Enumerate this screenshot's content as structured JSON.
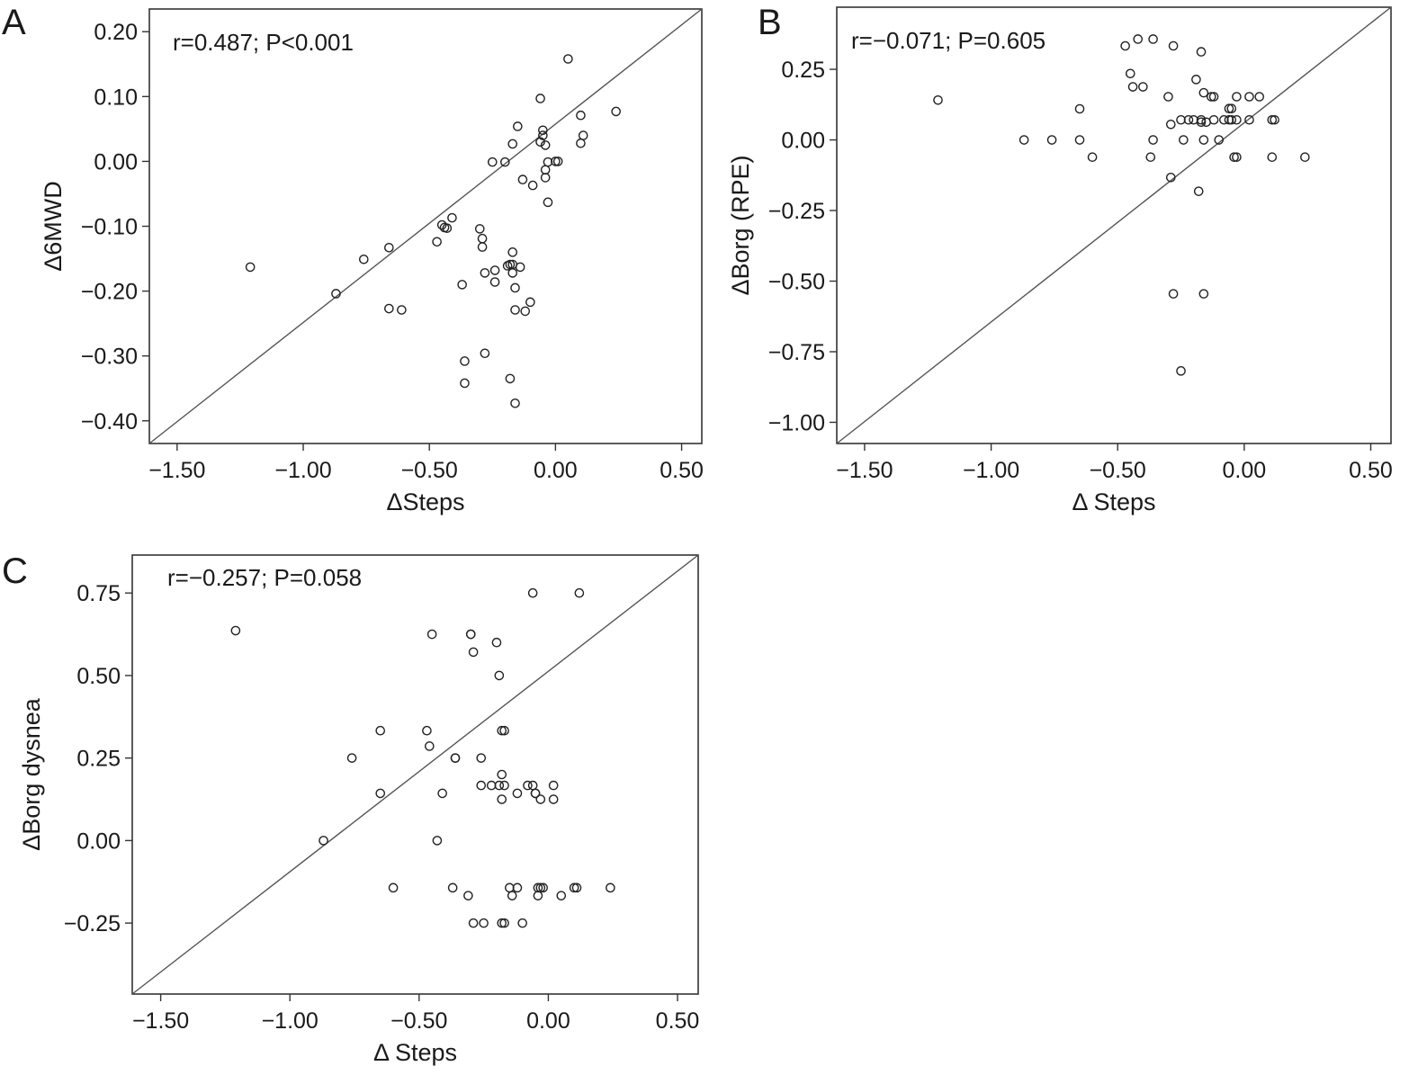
{
  "chart_data": [
    {
      "panel": "A",
      "type": "scatter",
      "annotation": "r=0.487; P<0.001",
      "xlabel": "ΔSteps",
      "ylabel": "Δ6MWD",
      "xlim": [
        -1.61,
        0.58
      ],
      "ylim": [
        -0.435,
        0.235
      ],
      "xticks": [
        -1.5,
        -1.0,
        -0.5,
        0.0,
        0.5
      ],
      "xtick_labels": [
        "−1.50",
        "−1.00",
        "−0.50",
        "0.00",
        "0.50"
      ],
      "yticks": [
        0.2,
        0.1,
        0.0,
        -0.1,
        -0.2,
        -0.3,
        -0.4
      ],
      "ytick_labels": [
        "0.20",
        "0.10",
        "0.00",
        "−0.10",
        "−0.20",
        "−0.30",
        "−0.40"
      ],
      "reference_line": "diagonal",
      "grid": false,
      "points": [
        [
          -1.21,
          -0.163
        ],
        [
          -0.87,
          -0.204
        ],
        [
          -0.76,
          -0.151
        ],
        [
          -0.66,
          -0.133
        ],
        [
          -0.66,
          -0.227
        ],
        [
          -0.61,
          -0.229
        ],
        [
          -0.47,
          -0.124
        ],
        [
          -0.45,
          -0.098
        ],
        [
          -0.44,
          -0.102
        ],
        [
          -0.43,
          -0.103
        ],
        [
          -0.41,
          -0.087
        ],
        [
          -0.37,
          -0.19
        ],
        [
          -0.36,
          -0.308
        ],
        [
          -0.36,
          -0.342
        ],
        [
          -0.3,
          -0.104
        ],
        [
          -0.29,
          -0.119
        ],
        [
          -0.29,
          -0.132
        ],
        [
          -0.28,
          -0.172
        ],
        [
          -0.28,
          -0.296
        ],
        [
          -0.25,
          -0.001
        ],
        [
          -0.24,
          -0.168
        ],
        [
          -0.24,
          -0.186
        ],
        [
          -0.2,
          -0.001
        ],
        [
          -0.19,
          -0.161
        ],
        [
          -0.18,
          -0.159
        ],
        [
          -0.18,
          -0.335
        ],
        [
          -0.17,
          0.027
        ],
        [
          -0.17,
          -0.14
        ],
        [
          -0.17,
          -0.159
        ],
        [
          -0.17,
          -0.172
        ],
        [
          -0.16,
          -0.195
        ],
        [
          -0.16,
          -0.229
        ],
        [
          -0.16,
          -0.373
        ],
        [
          -0.15,
          0.054
        ],
        [
          -0.14,
          -0.163
        ],
        [
          -0.13,
          -0.028
        ],
        [
          -0.12,
          -0.231
        ],
        [
          -0.1,
          -0.217
        ],
        [
          -0.09,
          -0.037
        ],
        [
          -0.06,
          0.097
        ],
        [
          -0.06,
          0.03
        ],
        [
          -0.05,
          0.048
        ],
        [
          -0.05,
          0.04
        ],
        [
          -0.04,
          0.025
        ],
        [
          -0.04,
          -0.013
        ],
        [
          -0.04,
          -0.025
        ],
        [
          -0.03,
          -0.001
        ],
        [
          -0.03,
          -0.063
        ],
        [
          0.0,
          0.0
        ],
        [
          0.01,
          0.0
        ],
        [
          0.05,
          0.158
        ],
        [
          0.1,
          0.071
        ],
        [
          0.1,
          0.028
        ],
        [
          0.11,
          0.04
        ],
        [
          0.24,
          0.077
        ]
      ]
    },
    {
      "panel": "B",
      "type": "scatter",
      "annotation": "r=−0.071; P=0.605",
      "xlabel": "Δ Steps",
      "ylabel": "ΔBorg (RPE)",
      "xlim": [
        -1.61,
        0.58
      ],
      "ylim": [
        -1.075,
        0.47
      ],
      "xticks": [
        -1.5,
        -1.0,
        -0.5,
        0.0,
        0.5
      ],
      "xtick_labels": [
        "−1.50",
        "−1.00",
        "−0.50",
        "0.00",
        "0.50"
      ],
      "yticks": [
        0.25,
        0.0,
        -0.25,
        -0.5,
        -0.75,
        -1.0
      ],
      "ytick_labels": [
        "0.25",
        "0.00",
        "−0.25",
        "−0.50",
        "−0.75",
        "−1.00"
      ],
      "reference_line": "diagonal",
      "grid": false,
      "points": [
        [
          -1.21,
          0.141
        ],
        [
          -0.87,
          0.0
        ],
        [
          -0.76,
          0.0
        ],
        [
          -0.65,
          0.0
        ],
        [
          -0.65,
          0.11
        ],
        [
          -0.6,
          -0.061
        ],
        [
          -0.47,
          0.333
        ],
        [
          -0.45,
          0.235
        ],
        [
          -0.44,
          0.188
        ],
        [
          -0.42,
          0.357
        ],
        [
          -0.4,
          0.188
        ],
        [
          -0.37,
          -0.061
        ],
        [
          -0.36,
          0.357
        ],
        [
          -0.36,
          0.0
        ],
        [
          -0.3,
          0.153
        ],
        [
          -0.29,
          0.055
        ],
        [
          -0.29,
          -0.133
        ],
        [
          -0.28,
          0.333
        ],
        [
          -0.28,
          -0.545
        ],
        [
          -0.25,
          0.071
        ],
        [
          -0.25,
          -0.818
        ],
        [
          -0.24,
          0.0
        ],
        [
          -0.22,
          0.071
        ],
        [
          -0.2,
          0.071
        ],
        [
          -0.19,
          0.214
        ],
        [
          -0.18,
          -0.182
        ],
        [
          -0.17,
          0.312
        ],
        [
          -0.17,
          0.071
        ],
        [
          -0.17,
          0.063
        ],
        [
          -0.16,
          0.167
        ],
        [
          -0.16,
          0.0
        ],
        [
          -0.16,
          -0.545
        ],
        [
          -0.15,
          0.063
        ],
        [
          -0.13,
          0.153
        ],
        [
          -0.12,
          0.153
        ],
        [
          -0.12,
          0.071
        ],
        [
          -0.1,
          0.0
        ],
        [
          -0.08,
          0.071
        ],
        [
          -0.06,
          0.111
        ],
        [
          -0.06,
          0.071
        ],
        [
          -0.05,
          0.111
        ],
        [
          -0.05,
          0.071
        ],
        [
          -0.04,
          -0.061
        ],
        [
          -0.03,
          0.153
        ],
        [
          -0.03,
          0.071
        ],
        [
          -0.03,
          -0.061
        ],
        [
          0.02,
          0.153
        ],
        [
          0.02,
          0.071
        ],
        [
          0.06,
          0.153
        ],
        [
          0.11,
          0.071
        ],
        [
          0.11,
          -0.061
        ],
        [
          0.12,
          0.071
        ],
        [
          0.24,
          -0.061
        ]
      ]
    },
    {
      "panel": "C",
      "type": "scatter",
      "annotation": "r=−0.257; P=0.058",
      "xlabel": "Δ Steps",
      "ylabel": "ΔBorg dysnea",
      "xlim": [
        -1.61,
        0.58
      ],
      "ylim": [
        -0.465,
        0.865
      ],
      "xticks": [
        -1.5,
        -1.0,
        -0.5,
        0.0,
        0.5
      ],
      "xtick_labels": [
        "−1.50",
        "−1.00",
        "−0.50",
        "0.00",
        "0.50"
      ],
      "yticks": [
        0.75,
        0.5,
        0.25,
        0.0,
        -0.25
      ],
      "ytick_labels": [
        "0.75",
        "0.50",
        "0.25",
        "0.00",
        "−0.25"
      ],
      "reference_line": "diagonal",
      "grid": false,
      "points": [
        [
          -1.21,
          0.636
        ],
        [
          -0.87,
          0.0
        ],
        [
          -0.76,
          0.25
        ],
        [
          -0.65,
          0.333
        ],
        [
          -0.65,
          0.143
        ],
        [
          -0.6,
          -0.143
        ],
        [
          -0.47,
          0.333
        ],
        [
          -0.46,
          0.286
        ],
        [
          -0.45,
          0.625
        ],
        [
          -0.43,
          0.0
        ],
        [
          -0.41,
          0.143
        ],
        [
          -0.37,
          -0.143
        ],
        [
          -0.36,
          0.25
        ],
        [
          -0.36,
          0.25
        ],
        [
          -0.31,
          -0.167
        ],
        [
          -0.3,
          0.625
        ],
        [
          -0.3,
          0.625
        ],
        [
          -0.29,
          0.571
        ],
        [
          -0.29,
          -0.25
        ],
        [
          -0.26,
          0.25
        ],
        [
          -0.26,
          0.167
        ],
        [
          -0.25,
          -0.25
        ],
        [
          -0.22,
          0.167
        ],
        [
          -0.2,
          0.6
        ],
        [
          -0.19,
          0.5
        ],
        [
          -0.19,
          0.167
        ],
        [
          -0.18,
          0.333
        ],
        [
          -0.18,
          0.2
        ],
        [
          -0.18,
          0.125
        ],
        [
          -0.17,
          0.333
        ],
        [
          -0.17,
          0.167
        ],
        [
          -0.18,
          -0.25
        ],
        [
          -0.17,
          -0.25
        ],
        [
          -0.15,
          -0.143
        ],
        [
          -0.14,
          -0.167
        ],
        [
          -0.12,
          0.143
        ],
        [
          -0.12,
          -0.143
        ],
        [
          -0.1,
          -0.25
        ],
        [
          -0.08,
          0.167
        ],
        [
          -0.06,
          0.75
        ],
        [
          -0.06,
          0.167
        ],
        [
          -0.05,
          0.143
        ],
        [
          -0.05,
          0.143
        ],
        [
          -0.04,
          -0.143
        ],
        [
          -0.04,
          -0.167
        ],
        [
          -0.03,
          0.125
        ],
        [
          -0.03,
          -0.143
        ],
        [
          -0.02,
          -0.143
        ],
        [
          0.02,
          0.167
        ],
        [
          0.02,
          0.125
        ],
        [
          0.05,
          -0.167
        ],
        [
          0.1,
          -0.143
        ],
        [
          0.11,
          -0.143
        ],
        [
          0.12,
          0.75
        ],
        [
          0.24,
          -0.143
        ]
      ]
    }
  ]
}
